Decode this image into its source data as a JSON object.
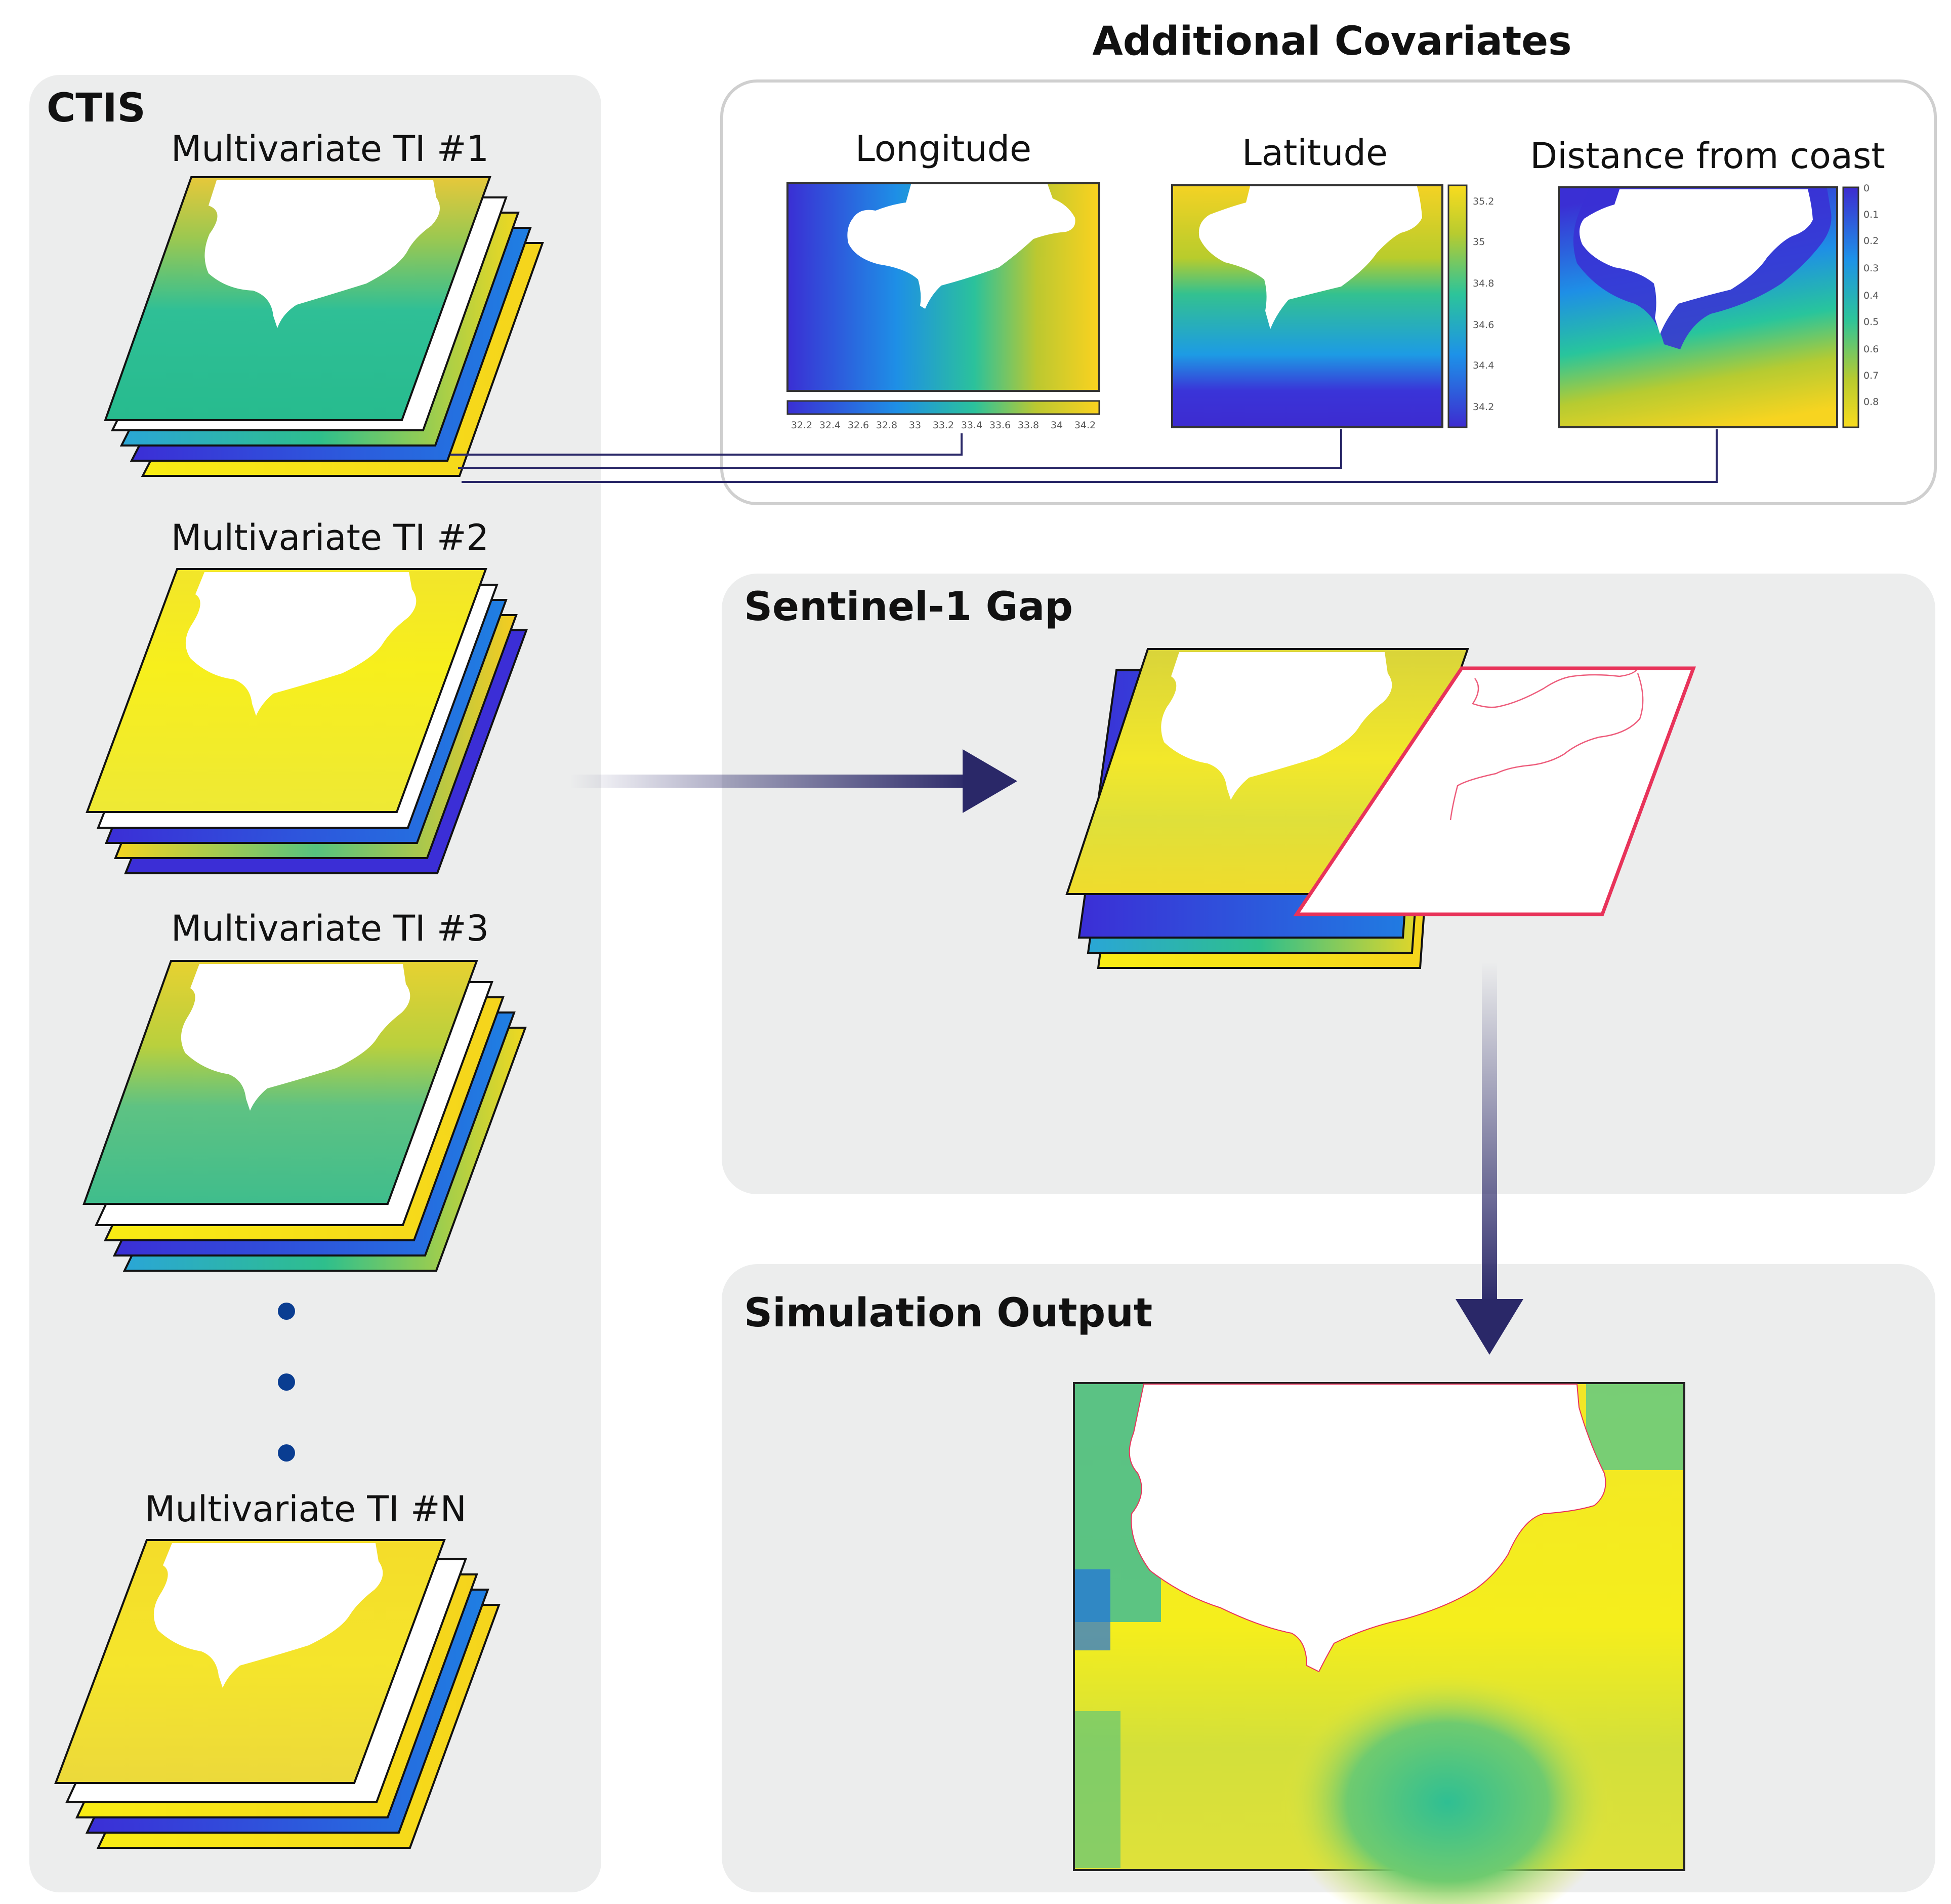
{
  "panels": {
    "ctis": {
      "title": "CTIS"
    },
    "covariates": {
      "title": "Additional Covariates"
    },
    "gap": {
      "title": "Sentinel-1 Gap"
    },
    "output": {
      "title": "Simulation Output"
    }
  },
  "training_images": [
    {
      "label": "Multivariate TI #1"
    },
    {
      "label": "Multivariate TI #2"
    },
    {
      "label": "Multivariate TI #3"
    },
    {
      "label": "Multivariate TI #N"
    }
  ],
  "covariates": [
    {
      "label": "Longitude",
      "ticks": [
        "32.2",
        "32.4",
        "32.6",
        "32.8",
        "33",
        "33.2",
        "33.4",
        "33.6",
        "33.8",
        "34",
        "34.2"
      ]
    },
    {
      "label": "Latitude",
      "ticks": [
        "35.2",
        "35",
        "34.8",
        "34.6",
        "34.4",
        "34.2"
      ]
    },
    {
      "label": "Distance from coast",
      "ticks": [
        "0",
        "0.1",
        "0.2",
        "0.3",
        "0.4",
        "0.5",
        "0.6",
        "0.7",
        "0.8"
      ]
    }
  ],
  "colors": {
    "panel_bg": "#eceded",
    "navy": "#2a2868",
    "gap_outline": "#e8335a",
    "viridis_low": "#3d2bd6",
    "viridis_mid": "#21c0a0",
    "viridis_high": "#f7e41a"
  }
}
